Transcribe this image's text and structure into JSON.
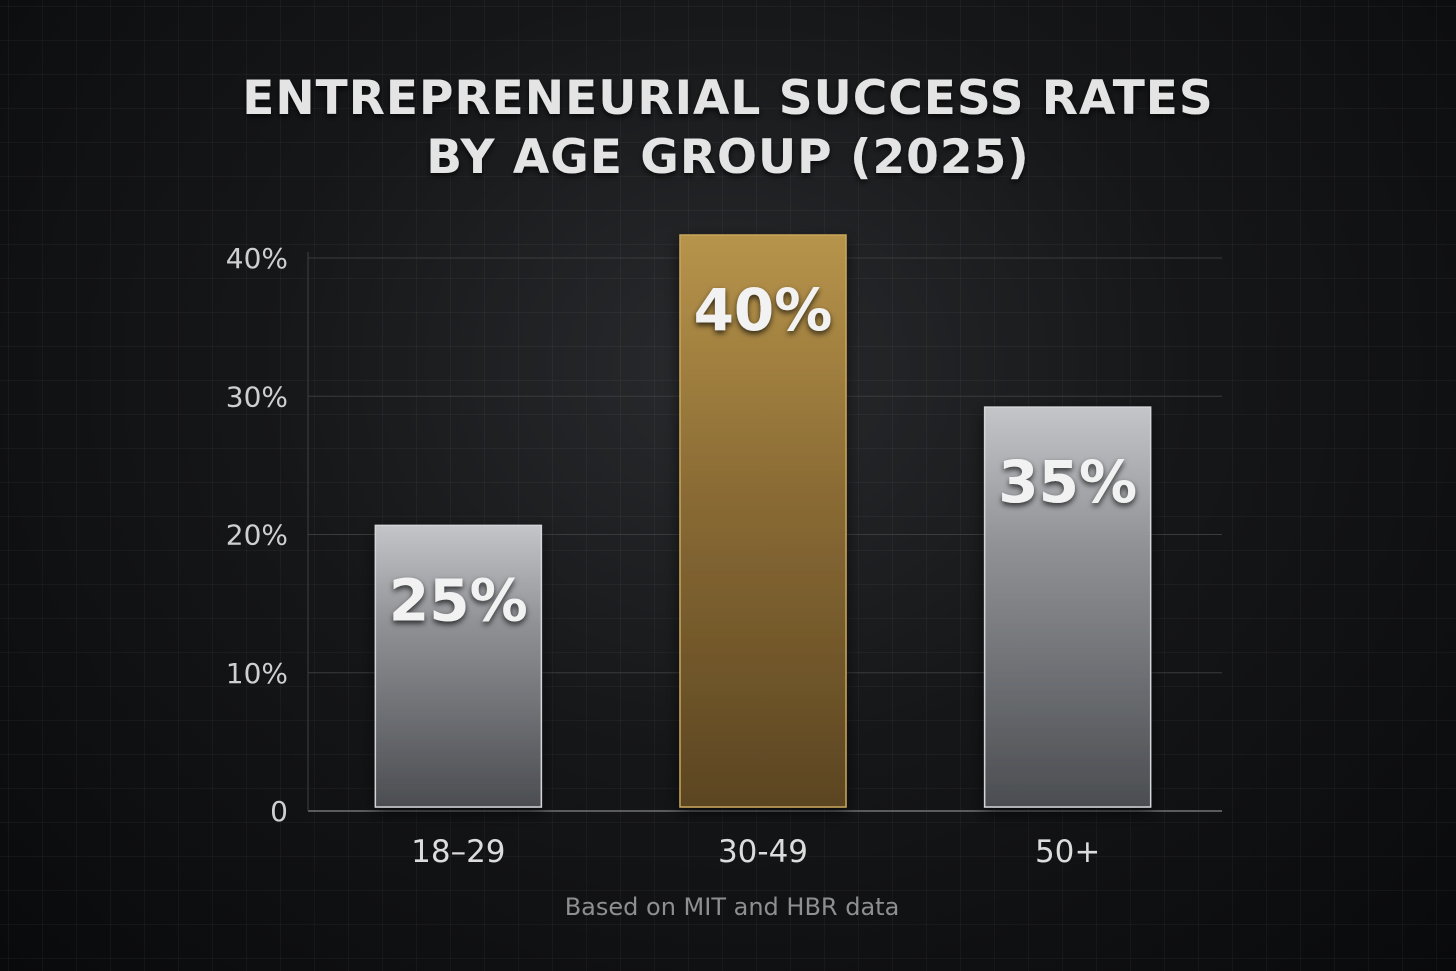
{
  "chart_data": {
    "type": "bar",
    "title": "ENTREPRENEURIAL SUCCESS RATES BY AGE GROUP (2025)",
    "title_lines": [
      "ENTREPRENEURIAL SUCCESS RATES",
      "BY AGE GROUP (2025)"
    ],
    "categories": [
      "18–29",
      "30-49",
      "50+"
    ],
    "values": [
      25,
      40,
      35
    ],
    "value_labels": [
      "25%",
      "40%",
      "35%"
    ],
    "yticks": [
      0,
      10,
      20,
      30,
      40
    ],
    "ytick_labels": [
      "0",
      "10%",
      "20%",
      "30%",
      "40%"
    ],
    "ylim": [
      0,
      40
    ],
    "xlabel": "",
    "ylabel": "",
    "source_note": "Based on MIT and HBR data",
    "grid": true,
    "legend": "none",
    "colors": {
      "background": "#0c0d0e",
      "bar_default": "#8d8f92",
      "bar_highlight": "#9a7a3c",
      "grid": "#3a3b3d",
      "text": "#e4e4e4"
    },
    "highlight_index": 1
  }
}
